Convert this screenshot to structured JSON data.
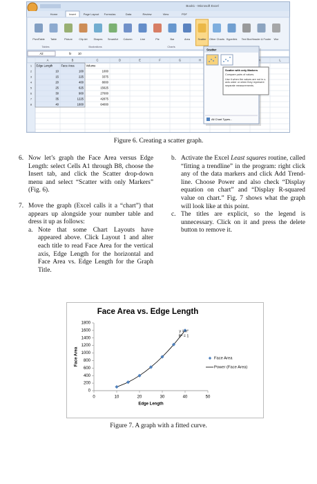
{
  "figure6": {
    "window_title": "Book1 - Microsoft Excel",
    "tabs": [
      "Home",
      "Insert",
      "Page Layout",
      "Formulas",
      "Data",
      "Review",
      "View",
      "PDF"
    ],
    "ribbon_buttons": [
      "PivotTable",
      "Table",
      "Picture",
      "Clip Art",
      "Shapes",
      "SmartArt",
      "Column",
      "Line",
      "Pie",
      "Bar",
      "Area",
      "Scatter",
      "Other Charts",
      "Hyperlink",
      "Text Box",
      "Header & Footer",
      "Wor"
    ],
    "ribbon_groups": [
      "Tables",
      "Illustrations",
      "Charts"
    ],
    "name_box": "A2",
    "formula_label": "fx",
    "formula": "10",
    "columns": [
      "A",
      "B",
      "C",
      "D",
      "E",
      "F",
      "G",
      "H",
      "I",
      "J",
      "K",
      "L"
    ],
    "row_numbers": [
      1,
      2,
      3,
      4,
      5,
      6,
      7,
      8
    ],
    "rows": [
      [
        "Edge Length",
        "Face Area",
        "Volume"
      ],
      [
        10,
        100,
        1000
      ],
      [
        15,
        225,
        3375
      ],
      [
        20,
        400,
        8000
      ],
      [
        25,
        625,
        15625
      ],
      [
        30,
        900,
        27000
      ],
      [
        35,
        1225,
        42875
      ],
      [
        40,
        1600,
        64000
      ]
    ],
    "dropdown": {
      "heading": "Scatter",
      "tooltip_title": "Scatter with only Markers",
      "tooltip_lines": [
        "Compare pairs of values.",
        "Use it when the values are not in x-axis order or when they represent separate measurements."
      ],
      "more": "All Chart Types..."
    },
    "caption": "Figure 6. Creating a scatter graph."
  },
  "left_column": [
    {
      "number": "6.",
      "text": "Now let’s graph the Face Area versus Edge Length: select Cells A1 through B8, choose the Insert tab, and click the Scatter drop-down menu and select “Scatter with only Markers” (Fig. 6)."
    },
    {
      "number": "7.",
      "text": "Move the graph (Excel calls it a “chart”) that appears up alongside your number table and dress it up as follows:",
      "sub": [
        {
          "number": "a.",
          "text": "Note that some Chart Layouts have appeared above. Click Layout 1 and alter each title to read Face Area for the vertical axis, Edge Length for the horizontal and Face Area vs. Edge Length for the Graph Title."
        }
      ]
    }
  ],
  "right_column": [
    {
      "number": "b.",
      "text_before": "Activate the Excel ",
      "emphasis": "Least squares",
      "text_after": " routine, called “fitting a trendline” in the program: right click any of the data markers and click Add Trend-line. Choose Power and also check “Display equation on chart” and “Display R-squared value on chart.” Fig. 7 shows what the graph will look like at this point."
    },
    {
      "number": "c.",
      "text": "The titles are explicit, so the legend is unnecessary. Click on it and press the delete button to remove it."
    }
  ],
  "chart_data": {
    "type": "scatter",
    "title": "Face Area vs. Edge Length",
    "x_label": "Edge Length",
    "y_label": "Face Area",
    "series": [
      {
        "name": "Face Area",
        "color": "#4f81bd",
        "x": [
          10,
          15,
          20,
          25,
          30,
          35,
          40
        ],
        "values": [
          100,
          225,
          400,
          625,
          900,
          1225,
          1600
        ]
      }
    ],
    "trendline": "power",
    "trendline_name": "Power (Face Area)",
    "trendline_color": "#000000",
    "annotations": [
      "y = x²",
      "R² = 1"
    ],
    "xlim": [
      0,
      50
    ],
    "xticks": [
      0,
      10,
      20,
      30,
      40,
      50
    ],
    "ylim": [
      0,
      1800
    ],
    "yticks": [
      0,
      200,
      400,
      600,
      800,
      1000,
      1200,
      1400,
      1600,
      1800
    ],
    "grid": false,
    "legend": "right"
  },
  "figure7_caption": "Figure 7. A graph with a fitted curve."
}
